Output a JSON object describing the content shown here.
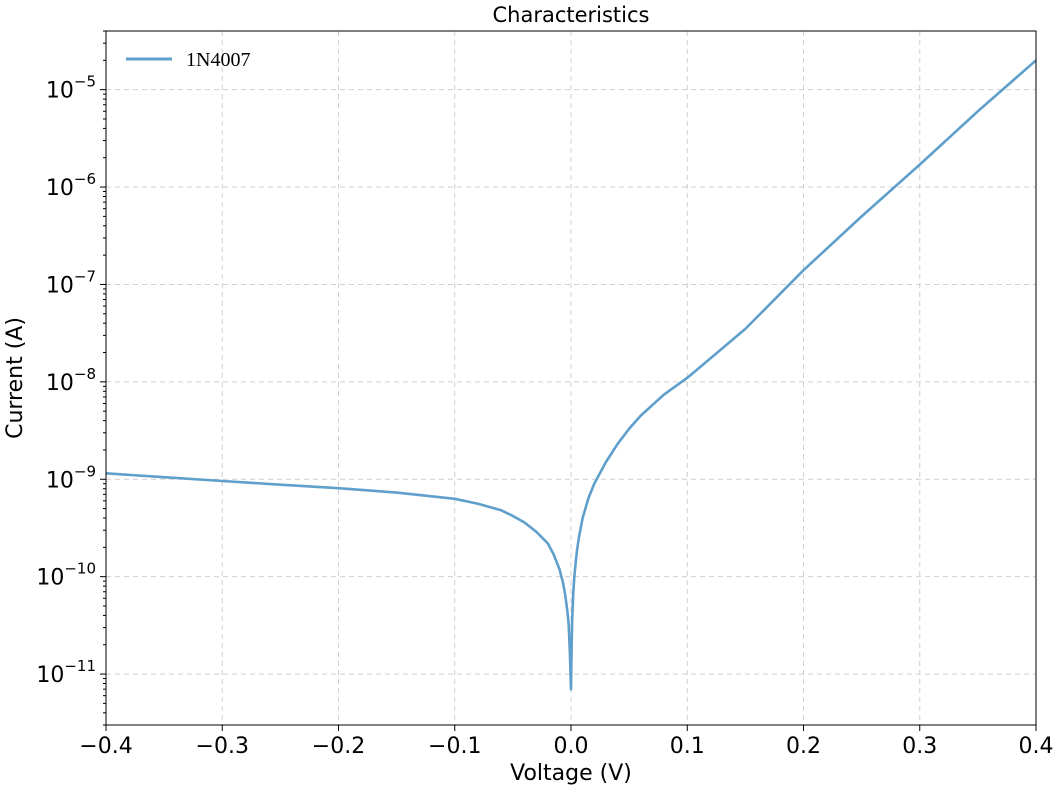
{
  "chart_data": {
    "type": "line",
    "title": "Characteristics",
    "xlabel": "Voltage (V)",
    "ylabel": "Current (A)",
    "xlim": [
      -0.4,
      0.4
    ],
    "ylim": [
      3e-12,
      4e-05
    ],
    "yscale": "log",
    "grid": true,
    "legend_position": "top-left",
    "x_ticks": [
      {
        "value": -0.4,
        "label": "−0.4"
      },
      {
        "value": -0.3,
        "label": "−0.3"
      },
      {
        "value": -0.2,
        "label": "−0.2"
      },
      {
        "value": -0.1,
        "label": "−0.1"
      },
      {
        "value": 0.0,
        "label": "0.0"
      },
      {
        "value": 0.1,
        "label": "0.1"
      },
      {
        "value": 0.2,
        "label": "0.2"
      },
      {
        "value": 0.3,
        "label": "0.3"
      },
      {
        "value": 0.4,
        "label": "0.4"
      }
    ],
    "y_ticks": [
      {
        "value": 1e-05,
        "base": "10",
        "exp": "−5"
      },
      {
        "value": 1e-06,
        "base": "10",
        "exp": "−6"
      },
      {
        "value": 1e-07,
        "base": "10",
        "exp": "−7"
      },
      {
        "value": 1e-08,
        "base": "10",
        "exp": "−8"
      },
      {
        "value": 1e-09,
        "base": "10",
        "exp": "−9"
      },
      {
        "value": 1e-10,
        "base": "10",
        "exp": "−10"
      },
      {
        "value": 1e-11,
        "base": "10",
        "exp": "−11"
      }
    ],
    "series": [
      {
        "name": "1N4007",
        "color": "#5f9fcb",
        "x": [
          -0.4,
          -0.35,
          -0.3,
          -0.25,
          -0.2,
          -0.15,
          -0.1,
          -0.08,
          -0.06,
          -0.05,
          -0.04,
          -0.03,
          -0.02,
          -0.015,
          -0.01,
          -0.007,
          -0.005,
          -0.003,
          -0.002,
          -0.001,
          -0.0005,
          0.0,
          0.0005,
          0.001,
          0.002,
          0.003,
          0.005,
          0.007,
          0.01,
          0.015,
          0.02,
          0.03,
          0.04,
          0.05,
          0.06,
          0.08,
          0.1,
          0.13,
          0.15,
          0.2,
          0.25,
          0.3,
          0.35,
          0.4
        ],
        "y": [
          1.15e-09,
          1.05e-09,
          9.6e-10,
          8.8e-10,
          8.1e-10,
          7.3e-10,
          6.3e-10,
          5.6e-10,
          4.8e-10,
          4.2e-10,
          3.6e-10,
          2.9e-10,
          2.2e-10,
          1.7e-10,
          1.2e-10,
          8.8e-11,
          6.5e-11,
          4.3e-11,
          3.2e-11,
          1.7e-11,
          1.1e-11,
          7e-12,
          1.8e-11,
          3.6e-11,
          7e-11,
          1.05e-10,
          1.8e-10,
          2.6e-10,
          4e-10,
          6.4e-10,
          9e-10,
          1.5e-09,
          2.3e-09,
          3.3e-09,
          4.5e-09,
          7.4e-09,
          1.1e-08,
          2.2e-08,
          3.5e-08,
          1.4e-07,
          5e-07,
          1.7e-06,
          6e-06,
          2e-05
        ]
      }
    ]
  }
}
